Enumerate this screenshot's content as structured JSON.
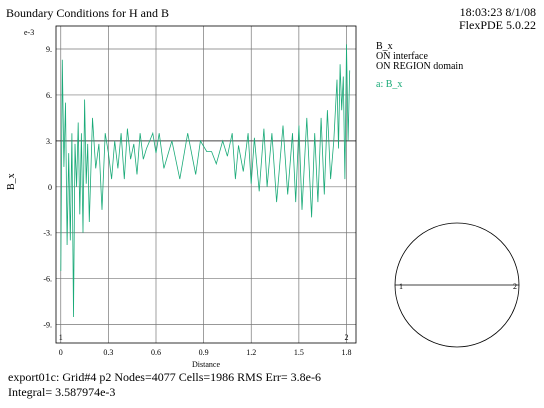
{
  "header": {
    "title": "Boundary Conditions for H and B",
    "time": "18:03:23 8/1/08",
    "version": "FlexPDE 5.0.22"
  },
  "legend": {
    "lines": [
      "B_x",
      "ON interface",
      "ON REGION domain"
    ],
    "entry": "a: B_x"
  },
  "footer": {
    "line1": "export01c:  Grid#4  p2  Nodes=4077 Cells=1986 RMS Err= 3.8e-6",
    "line2": "Integral=  3.587974e-3"
  },
  "colors": {
    "series": "#1aaa78",
    "marker": "#cc2222"
  },
  "chart_data": {
    "type": "line",
    "title": "",
    "xlabel": "Distance",
    "ylabel": "B_x",
    "y_multiplier": "e-3",
    "xlim": [
      -0.03,
      1.86
    ],
    "ylim": [
      -10.2,
      10.5
    ],
    "grid": true,
    "x_ticks": [
      0,
      0.3,
      0.6,
      0.9,
      1.2,
      1.5,
      1.8
    ],
    "x_tick_labels": [
      "0",
      "0.3",
      "0.6",
      "0.9",
      "1.2",
      "1.5",
      "1.8"
    ],
    "y_ticks": [
      9,
      6,
      3,
      0,
      -3,
      -6,
      -9
    ],
    "y_tick_labels": [
      "9.",
      "6.",
      "3.",
      "0",
      "-3.",
      "-6.",
      "-9."
    ],
    "reference_line": 3,
    "point_markers": [
      {
        "label": "1",
        "x": 0
      },
      {
        "label": "2",
        "x": 1.8
      }
    ],
    "series": [
      {
        "name": "a: B_x",
        "x": [
          0.0,
          0.01,
          0.02,
          0.03,
          0.04,
          0.05,
          0.06,
          0.07,
          0.08,
          0.09,
          0.1,
          0.11,
          0.12,
          0.13,
          0.14,
          0.15,
          0.16,
          0.17,
          0.18,
          0.2,
          0.22,
          0.24,
          0.26,
          0.28,
          0.3,
          0.32,
          0.34,
          0.36,
          0.38,
          0.4,
          0.42,
          0.44,
          0.46,
          0.48,
          0.5,
          0.52,
          0.54,
          0.56,
          0.58,
          0.6,
          0.62,
          0.65,
          0.7,
          0.75,
          0.8,
          0.85,
          0.88,
          0.92,
          0.95,
          0.98,
          1.02,
          1.05,
          1.08,
          1.1,
          1.12,
          1.15,
          1.18,
          1.2,
          1.22,
          1.25,
          1.28,
          1.3,
          1.33,
          1.36,
          1.4,
          1.43,
          1.46,
          1.48,
          1.5,
          1.52,
          1.55,
          1.58,
          1.6,
          1.62,
          1.64,
          1.66,
          1.68,
          1.7,
          1.72,
          1.74,
          1.75,
          1.76,
          1.77,
          1.78,
          1.79,
          1.8,
          1.81,
          1.82
        ],
        "y": [
          -5.5,
          8.3,
          1.3,
          5.5,
          -3.8,
          2.2,
          -3.5,
          3.5,
          -8.5,
          2.8,
          0.0,
          4.2,
          -1.8,
          3.5,
          -3.0,
          5.7,
          0.2,
          2.8,
          -2.3,
          4.5,
          1.2,
          2.8,
          -1.5,
          3.5,
          2.2,
          0.5,
          3.0,
          1.2,
          3.5,
          0.5,
          3.8,
          1.8,
          2.8,
          0.8,
          3.5,
          1.8,
          2.5,
          3.0,
          3.5,
          2.2,
          3.5,
          1.2,
          3.0,
          0.5,
          3.5,
          0.8,
          3.0,
          2.3,
          2.3,
          1.5,
          3.0,
          2.0,
          3.5,
          0.5,
          2.7,
          1.0,
          3.5,
          0.2,
          3.2,
          -0.3,
          3.8,
          0.0,
          3.5,
          -1.0,
          4.0,
          -0.5,
          3.5,
          -1.0,
          4.0,
          -1.5,
          4.5,
          -2.0,
          3.5,
          -1.0,
          4.5,
          -0.5,
          5.0,
          0.5,
          3.0,
          7.0,
          2.5,
          8.0,
          5.0,
          7.2,
          0.5,
          9.3,
          3.0,
          7.6
        ]
      }
    ]
  }
}
